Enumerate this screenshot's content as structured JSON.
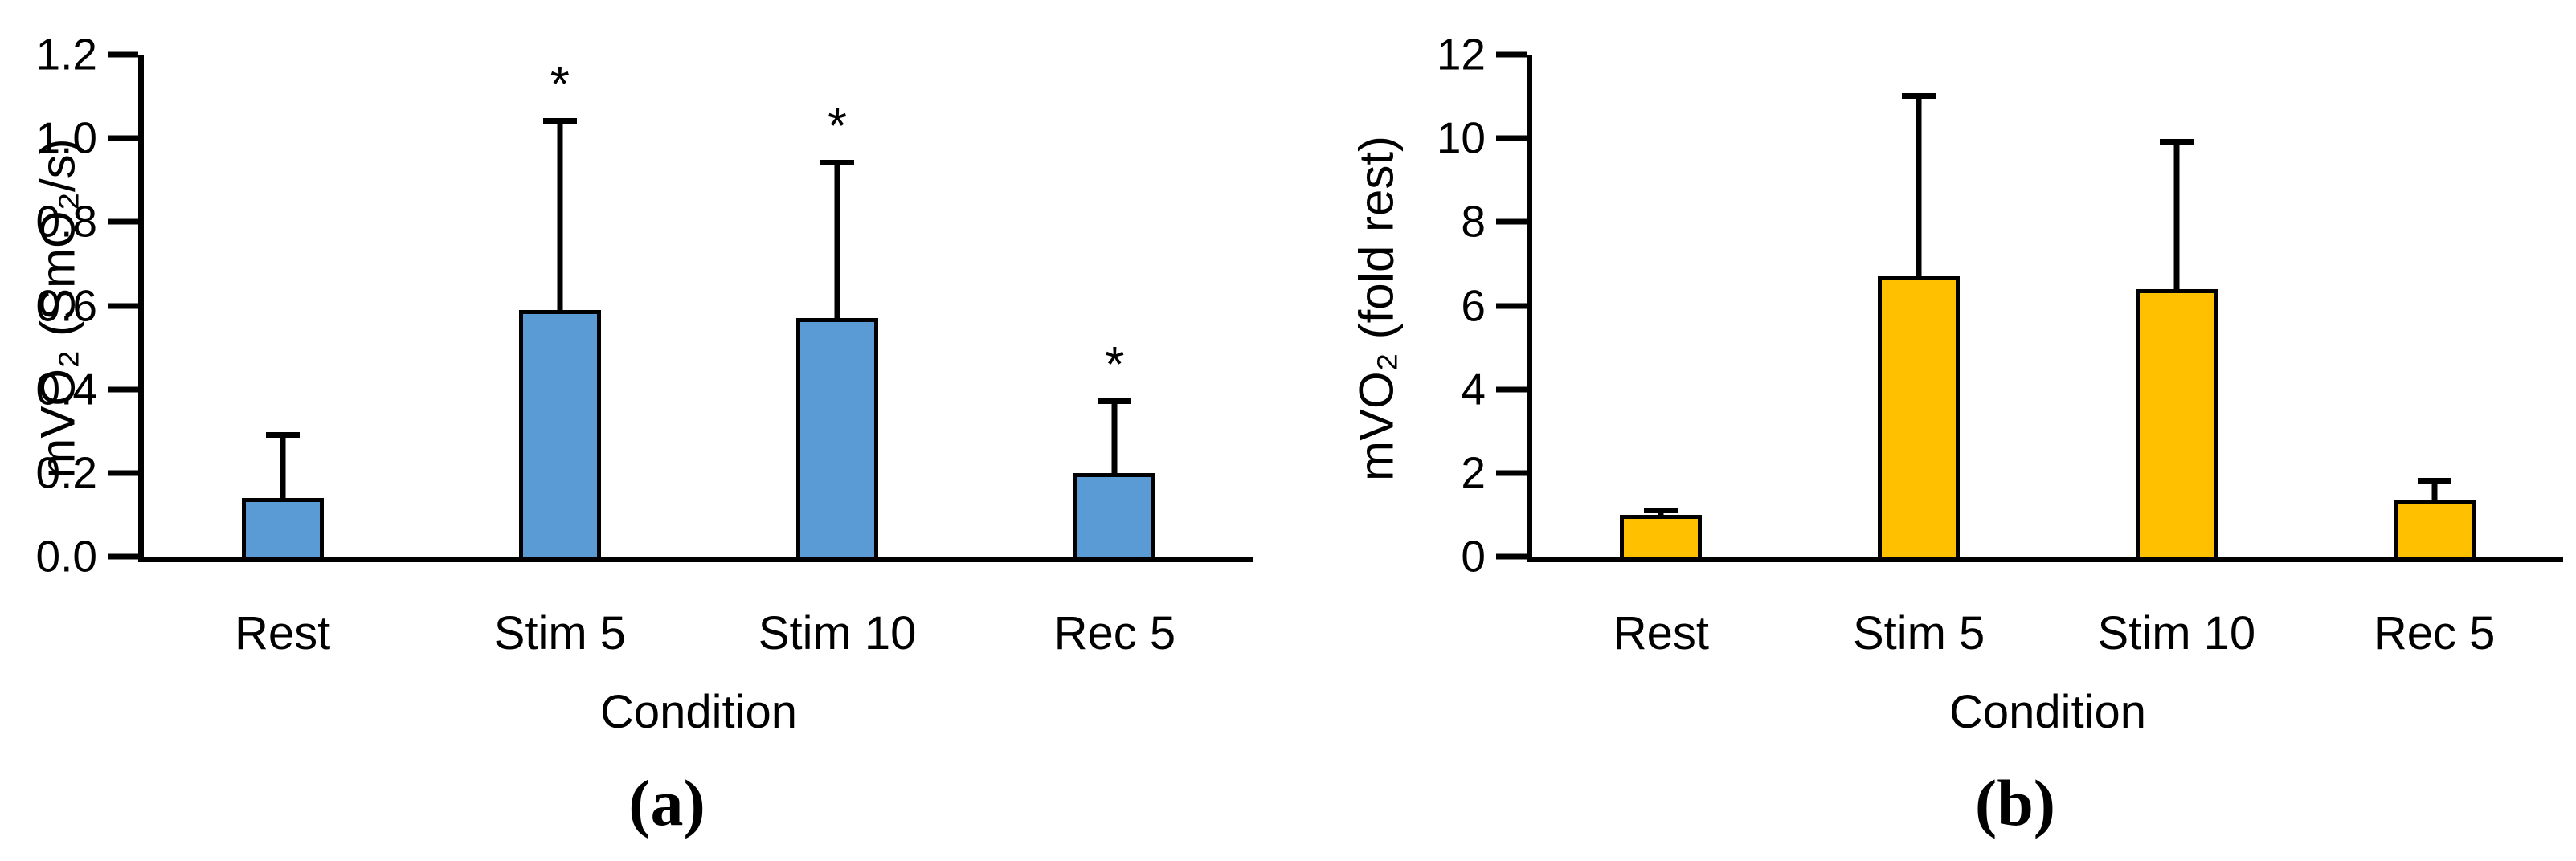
{
  "figure": {
    "background": "#ffffff",
    "significance_symbol": "*",
    "axis_color": "#000000"
  },
  "chart_data": [
    {
      "type": "bar",
      "panel": "a",
      "caption": "(a)",
      "categories": [
        "Rest",
        "Stim 5",
        "Stim 10",
        "Rec 5"
      ],
      "values": [
        0.14,
        0.59,
        0.57,
        0.2
      ],
      "error_top": [
        0.29,
        1.04,
        0.94,
        0.37
      ],
      "significance": [
        "",
        "*",
        "*",
        "*"
      ],
      "xlabel": "Condition",
      "ylabel": "mVO₂ (SmO₂/s)",
      "ylim": [
        0,
        1.2
      ],
      "yticks": [
        "0.0",
        "0.2",
        "0.4",
        "0.6",
        "0.8",
        "1.0",
        "1.2"
      ],
      "bar_color": "#5B9BD5",
      "bar_border_color": "#000000",
      "grid": false,
      "legend_position": "none"
    },
    {
      "type": "bar",
      "panel": "b",
      "caption": "(b)",
      "categories": [
        "Rest",
        "Stim 5",
        "Stim 10",
        "Rec 5"
      ],
      "values": [
        1.0,
        6.7,
        6.4,
        1.37
      ],
      "error_top": [
        1.1,
        11.0,
        9.9,
        1.8
      ],
      "significance": [
        "",
        "",
        "",
        ""
      ],
      "xlabel": "Condition",
      "ylabel": "mVO₂ (fold rest)",
      "ylim": [
        0,
        12
      ],
      "yticks": [
        "0",
        "2",
        "4",
        "6",
        "8",
        "10",
        "12"
      ],
      "bar_color": "#FFC000",
      "bar_border_color": "#000000",
      "grid": false,
      "legend_position": "none"
    }
  ]
}
